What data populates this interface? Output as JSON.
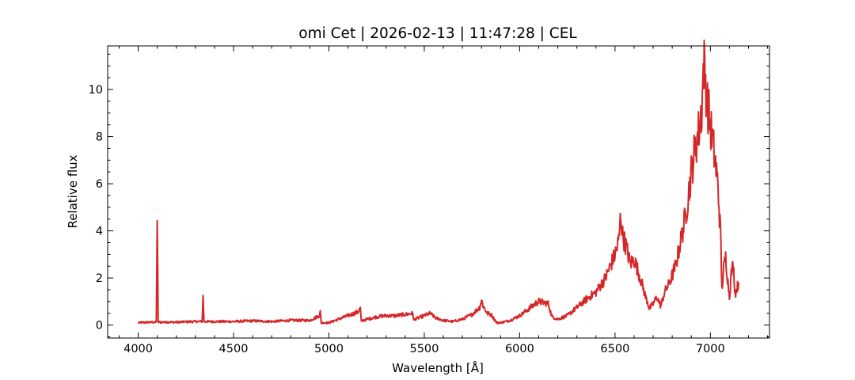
{
  "chart_data": {
    "type": "line",
    "title": "omi Cet | 2026-02-13 | 11:47:28 | CEL",
    "xlabel": "Wavelength [Å]",
    "ylabel": "Relative flux",
    "xlim": [
      3840,
      7310
    ],
    "ylim": [
      -0.55,
      11.85
    ],
    "x_ticks": [
      4000,
      4500,
      5000,
      5500,
      6000,
      6500,
      7000
    ],
    "x_tick_labels": [
      "4000",
      "4500",
      "5000",
      "5500",
      "6000",
      "6500",
      "7000"
    ],
    "y_ticks": [
      0,
      2,
      4,
      6,
      8,
      10
    ],
    "y_tick_labels": [
      "0",
      "2",
      "4",
      "6",
      "8",
      "10"
    ],
    "x_minor_step": 100,
    "y_minor_step": 0.5,
    "ticks_direction": "in",
    "ticks_all_sides": true,
    "grid": false,
    "legend": "none",
    "line_color": "#d62728",
    "series": [
      {
        "x": [
          4000,
          4050,
          4095,
          4100,
          4105,
          4150,
          4200,
          4250,
          4300,
          4335,
          4340,
          4345,
          4400,
          4500,
          4600,
          4700,
          4800,
          4900,
          4950,
          4955,
          4960,
          4970,
          5000,
          5050,
          5100,
          5150,
          5165,
          5170,
          5180,
          5200,
          5250,
          5300,
          5350,
          5400,
          5440,
          5445,
          5450,
          5500,
          5530,
          5560,
          5600,
          5650,
          5700,
          5750,
          5790,
          5800,
          5810,
          5830,
          5850,
          5880,
          5900,
          5950,
          6000,
          6050,
          6080,
          6100,
          6130,
          6150,
          6170,
          6200,
          6250,
          6300,
          6350,
          6400,
          6450,
          6480,
          6500,
          6520,
          6530,
          6540,
          6560,
          6580,
          6600,
          6620,
          6640,
          6660,
          6670,
          6680,
          6700,
          6720,
          6740,
          6760,
          6780,
          6800,
          6820,
          6840,
          6860,
          6880,
          6900,
          6920,
          6940,
          6955,
          6965,
          6975,
          6985,
          6995,
          7005,
          7015,
          7025,
          7040,
          7055,
          7060,
          7070,
          7080,
          7090,
          7100,
          7110,
          7120,
          7130,
          7140,
          7150
        ],
        "y": [
          0.1,
          0.12,
          0.12,
          4.5,
          0.12,
          0.13,
          0.12,
          0.14,
          0.15,
          0.15,
          1.2,
          0.15,
          0.15,
          0.15,
          0.18,
          0.15,
          0.2,
          0.2,
          0.4,
          0.55,
          0.1,
          0.1,
          0.1,
          0.25,
          0.4,
          0.55,
          0.7,
          0.15,
          0.2,
          0.25,
          0.35,
          0.4,
          0.4,
          0.45,
          0.5,
          0.2,
          0.25,
          0.4,
          0.5,
          0.3,
          0.2,
          0.15,
          0.25,
          0.45,
          0.75,
          1.05,
          0.8,
          0.5,
          0.45,
          0.1,
          0.1,
          0.2,
          0.4,
          0.7,
          0.9,
          1.0,
          0.95,
          0.9,
          0.35,
          0.25,
          0.4,
          0.75,
          1.1,
          1.4,
          2.0,
          2.6,
          3.0,
          3.6,
          4.7,
          3.8,
          3.3,
          2.6,
          2.8,
          2.3,
          1.8,
          1.2,
          1.0,
          0.7,
          0.9,
          1.2,
          0.8,
          1.4,
          1.7,
          2.1,
          2.6,
          3.4,
          4.2,
          5.2,
          6.5,
          7.5,
          8.3,
          9.2,
          11.2,
          10.3,
          9.4,
          8.8,
          8.2,
          7.6,
          7.0,
          5.9,
          3.5,
          1.5,
          2.4,
          2.9,
          2.0,
          1.2,
          2.2,
          2.6,
          1.3,
          1.6,
          1.8
        ]
      }
    ]
  }
}
